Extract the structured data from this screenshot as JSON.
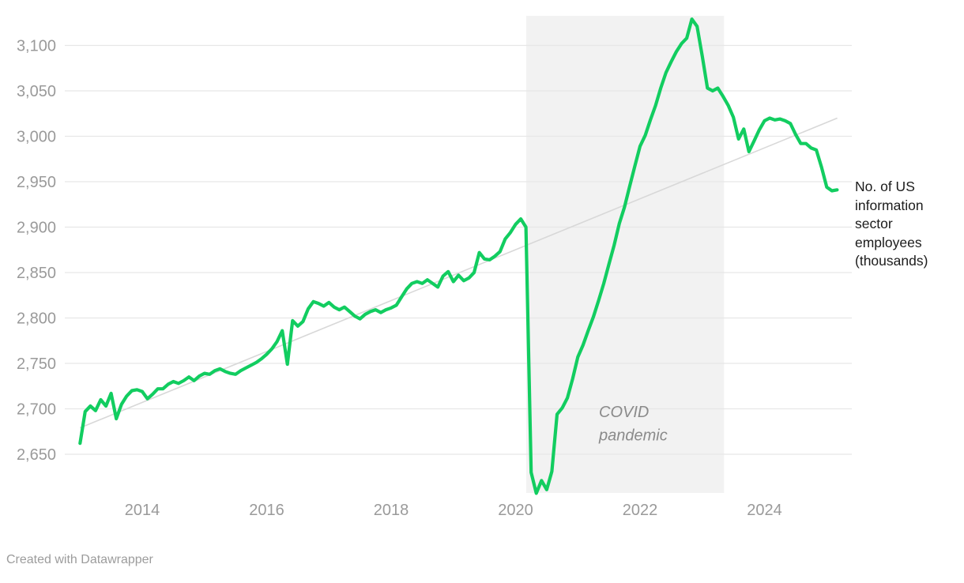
{
  "footer": {
    "credit": "Created with Datawrapper"
  },
  "chart_data": {
    "type": "line",
    "series_label": "No. of US information sector employees (thousands)",
    "unit": "thousands of employees",
    "frequency": "monthly",
    "start": "2013-01",
    "end": "2025-03",
    "x_tick_values": [
      2014,
      2016,
      2018,
      2020,
      2022,
      2024
    ],
    "y_tick_values": [
      3100,
      3050,
      3000,
      2950,
      2900,
      2850,
      2800,
      2750,
      2700,
      2650
    ],
    "values": [
      2662,
      2697,
      2703,
      2698,
      2710,
      2703,
      2717,
      2689,
      2705,
      2714,
      2720,
      2721,
      2719,
      2711,
      2716,
      2722,
      2722,
      2727,
      2730,
      2728,
      2731,
      2735,
      2731,
      2736,
      2739,
      2738,
      2742,
      2744,
      2741,
      2739,
      2738,
      2742,
      2745,
      2748,
      2751,
      2755,
      2760,
      2766,
      2774,
      2786,
      2749,
      2797,
      2791,
      2796,
      2810,
      2818,
      2816,
      2813,
      2817,
      2812,
      2809,
      2812,
      2807,
      2802,
      2799,
      2804,
      2807,
      2809,
      2806,
      2809,
      2811,
      2814,
      2823,
      2832,
      2838,
      2840,
      2838,
      2842,
      2838,
      2834,
      2846,
      2851,
      2840,
      2847,
      2841,
      2844,
      2850,
      2872,
      2865,
      2864,
      2868,
      2873,
      2887,
      2894,
      2903,
      2909,
      2900,
      2630,
      2607,
      2621,
      2611,
      2631,
      2694,
      2701,
      2712,
      2733,
      2757,
      2770,
      2786,
      2801,
      2819,
      2838,
      2859,
      2880,
      2904,
      2922,
      2945,
      2967,
      2989,
      3001,
      3018,
      3034,
      3053,
      3070,
      3082,
      3093,
      3102,
      3108,
      3129,
      3121,
      3088,
      3053,
      3050,
      3053,
      3044,
      3034,
      3021,
      2997,
      3008,
      2983,
      2995,
      3007,
      3017,
      3020,
      3018,
      3019,
      3017,
      3014,
      3002,
      2992,
      2992,
      2987,
      2985,
      2966,
      2944,
      2940,
      2941
    ],
    "trend_line": {
      "from_year": 2013.0,
      "from_value": 2679,
      "to_year": 2025.17,
      "to_value": 3020
    },
    "annotation_region": {
      "label": "COVID pandemic",
      "from": "2020-03",
      "to": "2023-05",
      "from_year": 2020.17,
      "to_year": 2023.35
    },
    "colors": {
      "line": "#12cd60",
      "trend": "#d8d8d8",
      "region": "#f2f2f2",
      "grid": "#e7e7e7",
      "axis_text": "#9a9a9a",
      "annotation_text": "#8a8a8a",
      "label_text": "#1c1c1c"
    }
  }
}
